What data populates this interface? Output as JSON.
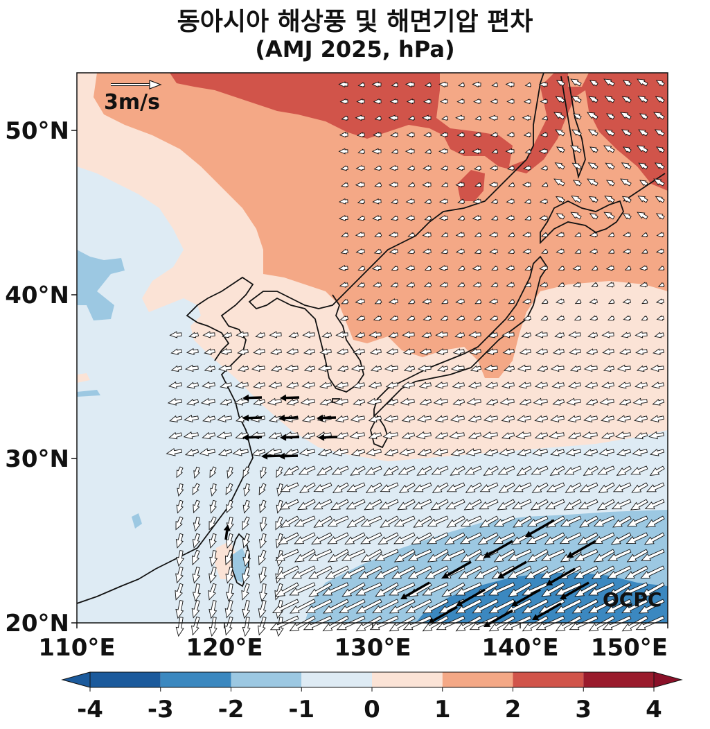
{
  "title": {
    "line1": "동아시아 해상풍 및 해면기압 편차",
    "line2": "(AMJ 2025, hPa)"
  },
  "map": {
    "lon_range": [
      110,
      150
    ],
    "lat_range": [
      20,
      53.5
    ],
    "lon_ticks": [
      "110°E",
      "120°E",
      "130°E",
      "140°E",
      "150°E"
    ],
    "lat_ticks": [
      "20°N",
      "30°N",
      "40°N",
      "50°N"
    ],
    "reference_vector_label": "3m/s",
    "credit": "OCPC"
  },
  "colorbar": {
    "ticks": [
      "-4",
      "-3",
      "-2",
      "-1",
      "0",
      "1",
      "2",
      "3",
      "4"
    ],
    "colors": [
      "#1b5a9c",
      "#3b88c0",
      "#9cc8e2",
      "#deebf4",
      "#fbe3d6",
      "#f4a886",
      "#d1544a",
      "#9a1b2c"
    ],
    "extend_low_color": "#1b5a9c",
    "extend_high_color": "#8a1028"
  },
  "colors": {
    "bin_minus3_minus2": "#3b88c0",
    "bin_minus2_minus1": "#9cc8e2",
    "bin_minus1_0": "#deebf4",
    "bin_0_1": "#fbe3d6",
    "bin_1_2": "#f4a886",
    "bin_2_3": "#d1544a"
  }
}
